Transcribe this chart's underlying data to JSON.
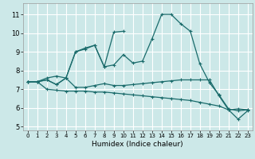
{
  "xlabel": "Humidex (Indice chaleur)",
  "background_color": "#cce8e8",
  "grid_color": "#ffffff",
  "line_color": "#1a6b6b",
  "xlim": [
    -0.5,
    23.5
  ],
  "ylim": [
    4.8,
    11.6
  ],
  "xticks": [
    0,
    1,
    2,
    3,
    4,
    5,
    6,
    7,
    8,
    9,
    10,
    11,
    12,
    13,
    14,
    15,
    16,
    17,
    18,
    19,
    20,
    21,
    22,
    23
  ],
  "yticks": [
    5,
    6,
    7,
    8,
    9,
    10,
    11
  ],
  "line1_x": [
    0,
    1,
    2,
    3,
    4,
    5,
    6,
    7,
    8,
    9,
    10,
    11,
    12,
    13,
    14,
    15,
    16,
    17,
    18,
    19,
    20,
    21,
    22,
    23
  ],
  "line1_y": [
    7.4,
    7.4,
    7.5,
    7.25,
    7.6,
    9.0,
    9.2,
    9.35,
    8.2,
    8.3,
    8.85,
    8.4,
    8.5,
    9.7,
    11.0,
    11.0,
    10.5,
    10.1,
    8.35,
    7.35,
    6.7,
    5.95,
    5.85,
    5.9
  ],
  "line2_x": [
    0,
    1,
    2,
    3,
    4,
    5,
    6,
    7,
    8,
    9,
    10
  ],
  "line2_y": [
    7.4,
    7.4,
    7.5,
    7.25,
    7.6,
    9.0,
    9.15,
    9.35,
    8.2,
    10.05,
    10.1
  ],
  "line3_x": [
    0,
    1,
    2,
    3,
    4,
    5,
    6,
    7,
    8,
    9,
    10,
    11,
    12,
    13,
    14,
    15,
    16,
    17,
    18,
    19,
    20,
    21,
    22,
    23
  ],
  "line3_y": [
    7.4,
    7.4,
    7.6,
    7.7,
    7.6,
    7.1,
    7.1,
    7.2,
    7.3,
    7.2,
    7.2,
    7.25,
    7.3,
    7.35,
    7.4,
    7.45,
    7.5,
    7.5,
    7.5,
    7.5,
    6.65,
    5.9,
    5.95,
    5.9
  ],
  "line4_x": [
    0,
    1,
    2,
    3,
    4,
    5,
    6,
    7,
    8,
    9,
    10,
    11,
    12,
    13,
    14,
    15,
    16,
    17,
    18,
    19,
    20,
    21,
    22,
    23
  ],
  "line4_y": [
    7.4,
    7.4,
    7.0,
    6.95,
    6.9,
    6.9,
    6.9,
    6.85,
    6.85,
    6.8,
    6.75,
    6.7,
    6.65,
    6.6,
    6.55,
    6.5,
    6.45,
    6.4,
    6.3,
    6.2,
    6.1,
    5.9,
    5.4,
    5.85
  ]
}
